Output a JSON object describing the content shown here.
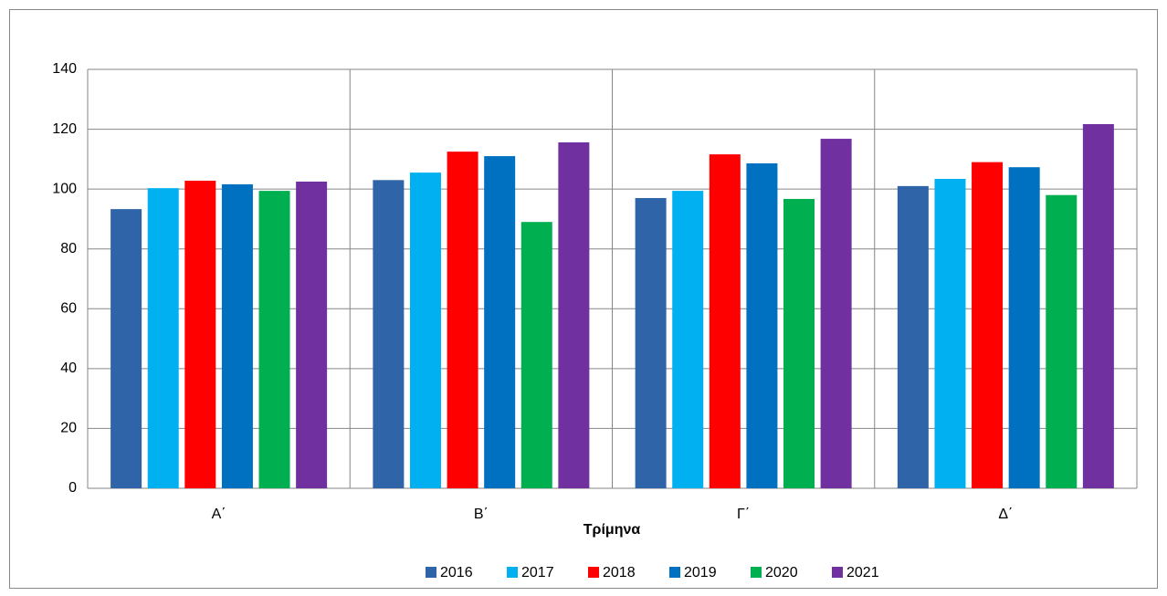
{
  "chart_data": {
    "type": "bar",
    "x_label": "Τρίμηνα",
    "categories": [
      "Α΄",
      "Β΄",
      "Γ΄",
      "Δ΄"
    ],
    "series": [
      {
        "name": "2016",
        "color": "#2f65a8",
        "values": [
          93.3,
          103,
          97,
          101
        ]
      },
      {
        "name": "2017",
        "color": "#00b0f0",
        "values": [
          100.3,
          105.5,
          99.4,
          103.4
        ]
      },
      {
        "name": "2018",
        "color": "#ff0000",
        "values": [
          102.8,
          112.5,
          111.6,
          109
        ]
      },
      {
        "name": "2019",
        "color": "#0070c0",
        "values": [
          101.6,
          111,
          108.6,
          107.3
        ]
      },
      {
        "name": "2020",
        "color": "#00b050",
        "values": [
          99.4,
          89,
          96.7,
          98
        ]
      },
      {
        "name": "2021",
        "color": "#7030a0",
        "values": [
          102.5,
          115.6,
          116.8,
          121.7
        ]
      }
    ],
    "ylim": [
      0,
      140
    ],
    "yticks": [
      0,
      20,
      40,
      60,
      80,
      100,
      120,
      140
    ],
    "grid": true
  }
}
